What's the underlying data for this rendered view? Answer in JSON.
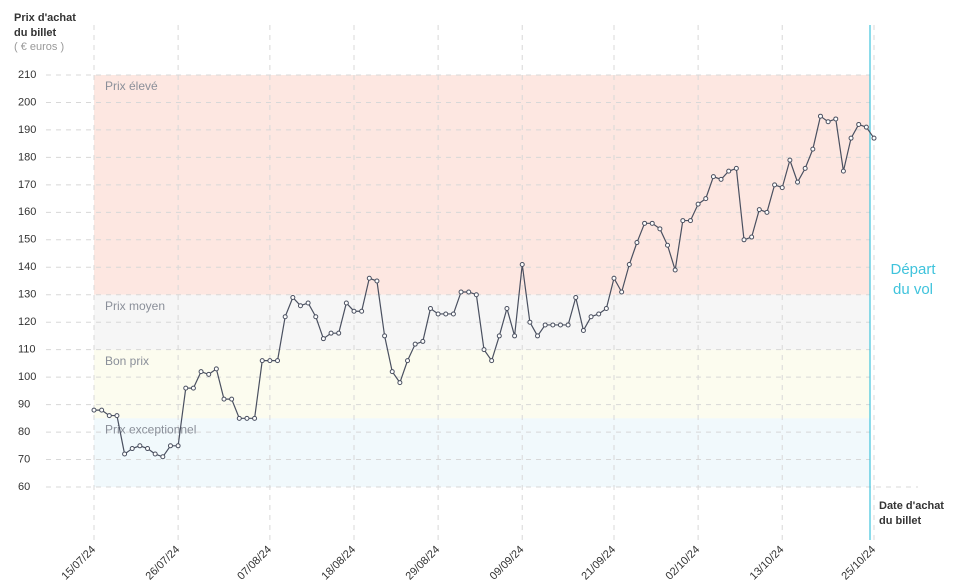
{
  "chart_data": {
    "type": "line",
    "y_label": [
      "Prix d'achat",
      "du billet"
    ],
    "y_unit": "( € euros )",
    "x_label": [
      "Date d'achat",
      "du billet"
    ],
    "annotation": [
      "Départ",
      "du vol"
    ],
    "annotation_color": "#3fc3dc",
    "categories": [
      "15/07/24",
      null,
      null,
      null,
      null,
      null,
      null,
      null,
      null,
      null,
      null,
      "26/07/24",
      null,
      null,
      null,
      null,
      null,
      null,
      null,
      null,
      null,
      null,
      null,
      "07/08/24",
      null,
      null,
      null,
      null,
      null,
      null,
      null,
      null,
      null,
      null,
      "18/08/24",
      null,
      null,
      null,
      null,
      null,
      null,
      null,
      null,
      null,
      null,
      "29/08/24",
      null,
      null,
      null,
      null,
      null,
      null,
      null,
      null,
      null,
      null,
      "09/09/24",
      null,
      null,
      null,
      null,
      null,
      null,
      null,
      null,
      null,
      null,
      null,
      "21/09/24",
      null,
      null,
      null,
      null,
      null,
      null,
      null,
      null,
      null,
      null,
      "02/10/24",
      null,
      null,
      null,
      null,
      null,
      null,
      null,
      null,
      null,
      null,
      "13/10/24",
      null,
      null,
      null,
      null,
      null,
      null,
      null,
      null,
      null,
      null,
      null,
      "25/10/24"
    ],
    "series": [
      {
        "name": "Prix",
        "color": "#4a5060",
        "values": [
          88,
          88,
          86,
          86,
          72,
          74,
          75,
          74,
          72,
          71,
          75,
          75,
          96,
          96,
          102,
          101,
          103,
          92,
          92,
          85,
          85,
          85,
          106,
          106,
          106,
          122,
          129,
          126,
          127,
          122,
          114,
          116,
          116,
          127,
          124,
          124,
          136,
          135,
          115,
          102,
          98,
          106,
          112,
          113,
          125,
          123,
          123,
          123,
          131,
          131,
          130,
          110,
          106,
          115,
          125,
          115,
          141,
          120,
          115,
          119,
          119,
          119,
          119,
          129,
          117,
          122,
          123,
          125,
          136,
          131,
          141,
          149,
          156,
          156,
          154,
          148,
          139,
          157,
          157,
          163,
          165,
          173,
          172,
          175,
          176,
          150,
          151,
          161,
          160,
          170,
          169,
          179,
          171,
          176,
          183,
          195,
          193,
          194,
          175,
          187,
          192,
          191,
          187
        ]
      }
    ],
    "bands": [
      {
        "label": "Prix élevé",
        "from": 130,
        "to": 210,
        "color": "#fde7e1"
      },
      {
        "label": "Prix moyen",
        "from": 110,
        "to": 130,
        "color": "#f6f6f6"
      },
      {
        "label": "Bon prix",
        "from": 85,
        "to": 110,
        "color": "#fcfcef"
      },
      {
        "label": "Prix exceptionnel",
        "from": 60,
        "to": 85,
        "color": "#f1f9fc"
      }
    ],
    "ylim": [
      60,
      210
    ],
    "yticks": [
      60,
      70,
      80,
      90,
      100,
      110,
      120,
      130,
      140,
      150,
      160,
      170,
      180,
      190,
      200,
      210
    ],
    "grid": true
  }
}
